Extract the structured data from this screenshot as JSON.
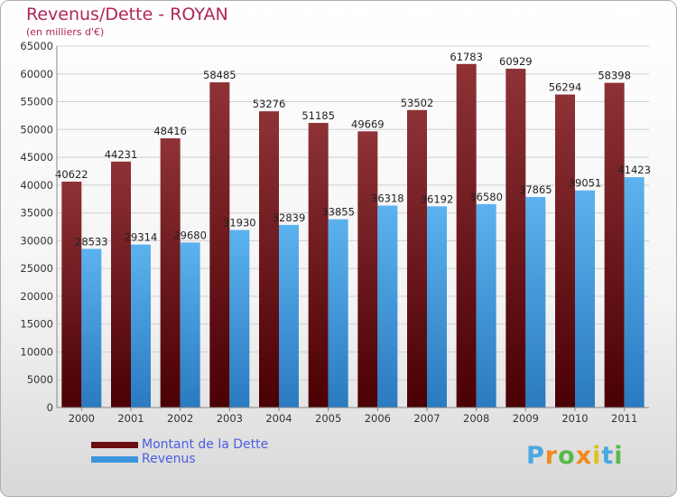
{
  "title": "Revenus/Dette - ROYAN",
  "subtitle": "(en milliers d'€)",
  "colors": {
    "dette": "#7a1e22",
    "revenus": "#4a9fe0",
    "title": "#b0245a",
    "legend_text": "#4a5de0"
  },
  "legend": [
    {
      "label": "Montant de la Dette",
      "color": "#6a0e12"
    },
    {
      "label": "Revenus",
      "color": "#3d95dc"
    }
  ],
  "logo": {
    "text": "Proxiti"
  },
  "chart_data": {
    "type": "bar",
    "categories": [
      "2000",
      "2001",
      "2002",
      "2003",
      "2004",
      "2005",
      "2006",
      "2007",
      "2008",
      "2009",
      "2010",
      "2011"
    ],
    "series": [
      {
        "name": "Montant de la Dette",
        "values": [
          40622,
          44231,
          48416,
          58485,
          53276,
          51185,
          49669,
          53502,
          61783,
          60929,
          56294,
          58398
        ]
      },
      {
        "name": "Revenus",
        "values": [
          28533,
          29314,
          29680,
          31930,
          32839,
          33855,
          36318,
          36192,
          36580,
          37865,
          39051,
          41423
        ]
      }
    ],
    "ylim": [
      0,
      65000
    ],
    "yticks": [
      0,
      5000,
      10000,
      15000,
      20000,
      25000,
      30000,
      35000,
      40000,
      45000,
      50000,
      55000,
      60000,
      65000
    ],
    "grid": true,
    "legend_position": "bottom-left"
  }
}
